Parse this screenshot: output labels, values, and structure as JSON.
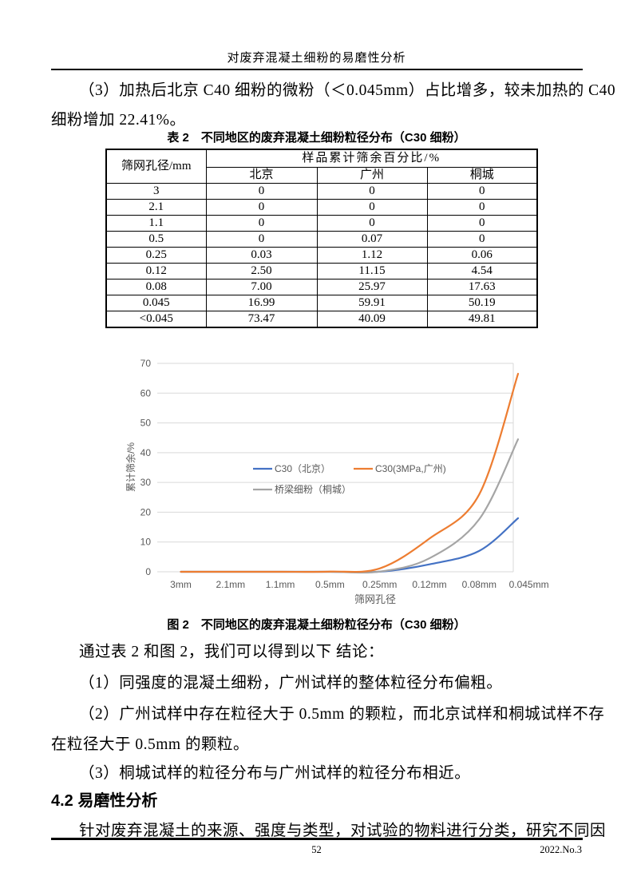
{
  "header": {
    "title": "对废弃混凝土细粉的易磨性分析"
  },
  "body": {
    "p1_line1": "（3）加热后北京 C40 细粉的微粉（＜0.045mm）占比增多，较未加热的 C40",
    "p1_line2": "细粉增加 22.41%。",
    "conclusion_intro": "通过表 2 和图 2，我们可以得到以下 结论：",
    "conclusion_1": "（1）同强度的混凝土细粉，广州试样的整体粒径分布偏粗。",
    "conclusion_2_line1": "（2）广州试样中存在粒径大于 0.5mm 的颗粒，而北京试样和桐城试样不存",
    "conclusion_2_line2": "在粒径大于 0.5mm 的颗粒。",
    "conclusion_3": "（3）桐城试样的粒径分布与广州试样的粒径分布相近。",
    "section_heading": "4.2 易磨性分析",
    "section_paragraph": "针对废弃混凝土的来源、强度与类型，对试验的物料进行分类，研究不同因"
  },
  "table": {
    "caption": "表 2　不同地区的废弃混凝土细粉粒径分布（C30 细粉）",
    "col1_header": "筛网孔径/mm",
    "group_header": "样品累计筛余百分比/%",
    "city_headers": [
      "北京",
      "广州",
      "桐城"
    ],
    "rows": [
      [
        "3",
        "0",
        "0",
        "0"
      ],
      [
        "2.1",
        "0",
        "0",
        "0"
      ],
      [
        "1.1",
        "0",
        "0",
        "0"
      ],
      [
        "0.5",
        "0",
        "0.07",
        "0"
      ],
      [
        "0.25",
        "0.03",
        "1.12",
        "0.06"
      ],
      [
        "0.12",
        "2.50",
        "11.15",
        "4.54"
      ],
      [
        "0.08",
        "7.00",
        "25.97",
        "17.63"
      ],
      [
        "0.045",
        "16.99",
        "59.91",
        "50.19"
      ],
      [
        "<0.045",
        "73.47",
        "40.09",
        "49.81"
      ]
    ]
  },
  "figure": {
    "caption": "图 2　不同地区的废弃混凝土细粉粒径分布（C30 细粉）"
  },
  "chart_data": {
    "type": "line",
    "title": "",
    "xlabel": "筛网孔径",
    "ylabel": "累计筛余/%",
    "ylim": [
      0,
      70
    ],
    "yticks": [
      0,
      10,
      20,
      30,
      40,
      50,
      60,
      70
    ],
    "categories": [
      "3mm",
      "2.1mm",
      "1.1mm",
      "0.5mm",
      "0.25mm",
      "0.12mm",
      "0.08mm",
      "0.045mm"
    ],
    "grid": true,
    "legend_position": "inside-middle",
    "clipped_right_edge": true,
    "series": [
      {
        "name": "C30（北京）",
        "color": "#4472C4",
        "values": [
          0,
          0,
          0,
          0,
          0.03,
          2.5,
          7.0
        ],
        "value_at_right_edge": 18.0
      },
      {
        "name": "C30(3MPa,广州)",
        "color": "#ED7D31",
        "values": [
          0,
          0,
          0,
          0.07,
          1.12,
          11.15,
          25.97
        ],
        "value_at_right_edge": 66.5
      },
      {
        "name": "桥梁细粉（桐城）",
        "color": "#A5A5A5",
        "values": [
          0,
          0,
          0,
          0,
          0.06,
          4.54,
          17.63
        ],
        "value_at_right_edge": 44.5
      }
    ],
    "colors": {
      "grid": "#D9D9D9",
      "axis_text": "#595959"
    }
  },
  "footer": {
    "page_number": "52",
    "issue": "2022.No.3"
  }
}
